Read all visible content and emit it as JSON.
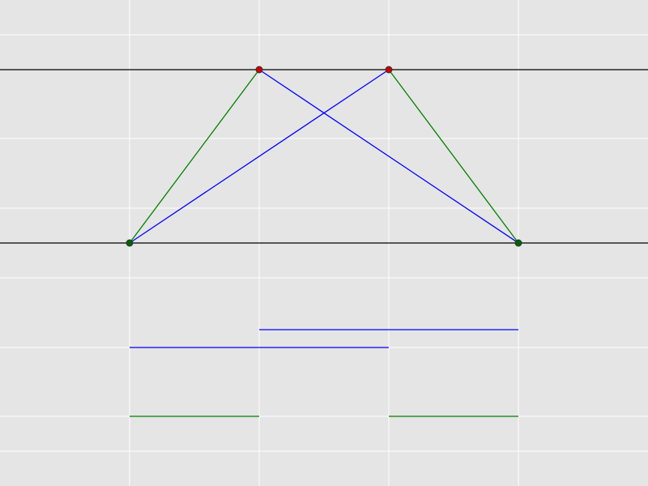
{
  "colors": {
    "background": "#e5e5e5",
    "grid": "#ffffff",
    "axis_line": "#000000",
    "blue_segment": "#0000ff",
    "green_segment": "#008000",
    "top_point_fill": "#cc0000",
    "bottom_point_fill": "#006400",
    "point_stroke": "#333333"
  },
  "diagram": {
    "grid": true,
    "top_points": [
      "top-left-point",
      "top-right-point"
    ],
    "bottom_points": [
      "bottom-left-point",
      "bottom-right-point"
    ],
    "connections": {
      "green": [
        [
          "bottom-left-point",
          "top-left-point"
        ],
        [
          "top-right-point",
          "bottom-right-point"
        ]
      ],
      "blue": [
        [
          "bottom-left-point",
          "top-right-point"
        ],
        [
          "top-left-point",
          "bottom-right-point"
        ]
      ]
    },
    "projections": {
      "blue": 2,
      "green": 2
    }
  }
}
